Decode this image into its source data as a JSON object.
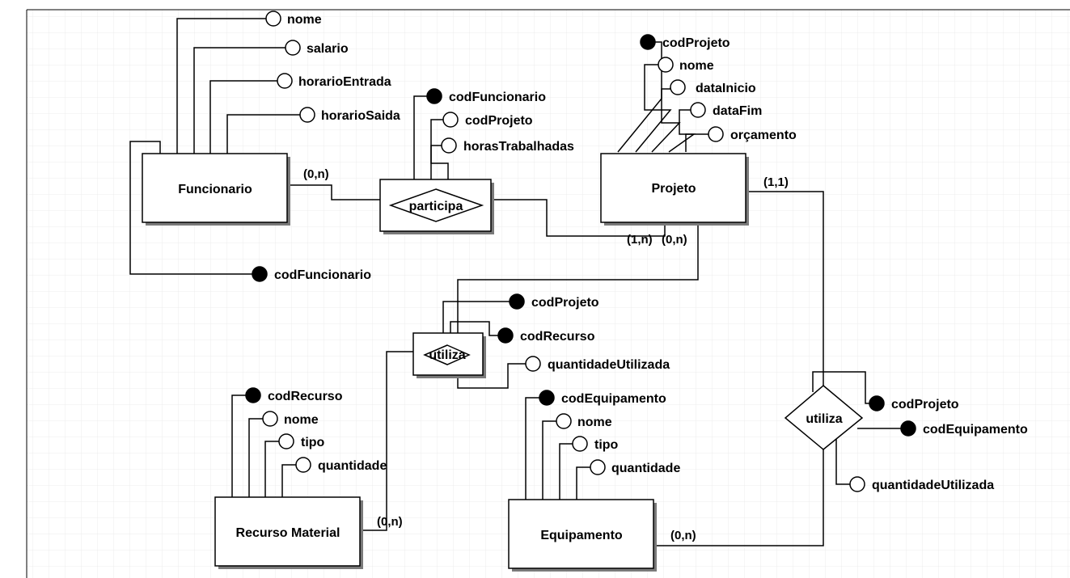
{
  "entities": {
    "funcionario": "Funcionario",
    "projeto": "Projeto",
    "recurso": "Recurso Material",
    "equipamento": "Equipamento"
  },
  "relationships": {
    "participa": "participa",
    "utiliza_recurso": "utiliza",
    "utiliza_equipamento": "utiliza"
  },
  "attributes": {
    "funcionario_nome": "nome",
    "funcionario_salario": "salario",
    "funcionario_horarioEntrada": "horarioEntrada",
    "funcionario_horarioSaida": "horarioSaida",
    "funcionario_codFuncionario": "codFuncionario",
    "participa_codFuncionario": "codFuncionario",
    "participa_codProjeto": "codProjeto",
    "participa_horasTrabalhadas": "horasTrabalhadas",
    "projeto_codProjeto": "codProjeto",
    "projeto_nome": "nome",
    "projeto_dataInicio": "dataInicio",
    "projeto_dataFim": "dataFim",
    "projeto_orcamento": "orçamento",
    "utilizaR_codProjeto": "codProjeto",
    "utilizaR_codRecurso": "codRecurso",
    "utilizaR_quantidadeUtilizada": "quantidadeUtilizada",
    "recurso_codRecurso": "codRecurso",
    "recurso_nome": "nome",
    "recurso_tipo": "tipo",
    "recurso_quantidade": "quantidade",
    "equip_codEquipamento": "codEquipamento",
    "equip_nome": "nome",
    "equip_tipo": "tipo",
    "equip_quantidade": "quantidade",
    "utilizaE_codProjeto": "codProjeto",
    "utilizaE_codEquipamento": "codEquipamento",
    "utilizaE_quantidadeUtilizada": "quantidadeUtilizada"
  },
  "cardinalities": {
    "funcionario_participa": "(0,n)",
    "projeto_participa": "(1,n)",
    "projeto_utilizaR": "(0,n)",
    "projeto_utilizaE": "(1,1)",
    "recurso_utiliza": "(0,n)",
    "equipamento_utiliza": "(0,n)"
  }
}
